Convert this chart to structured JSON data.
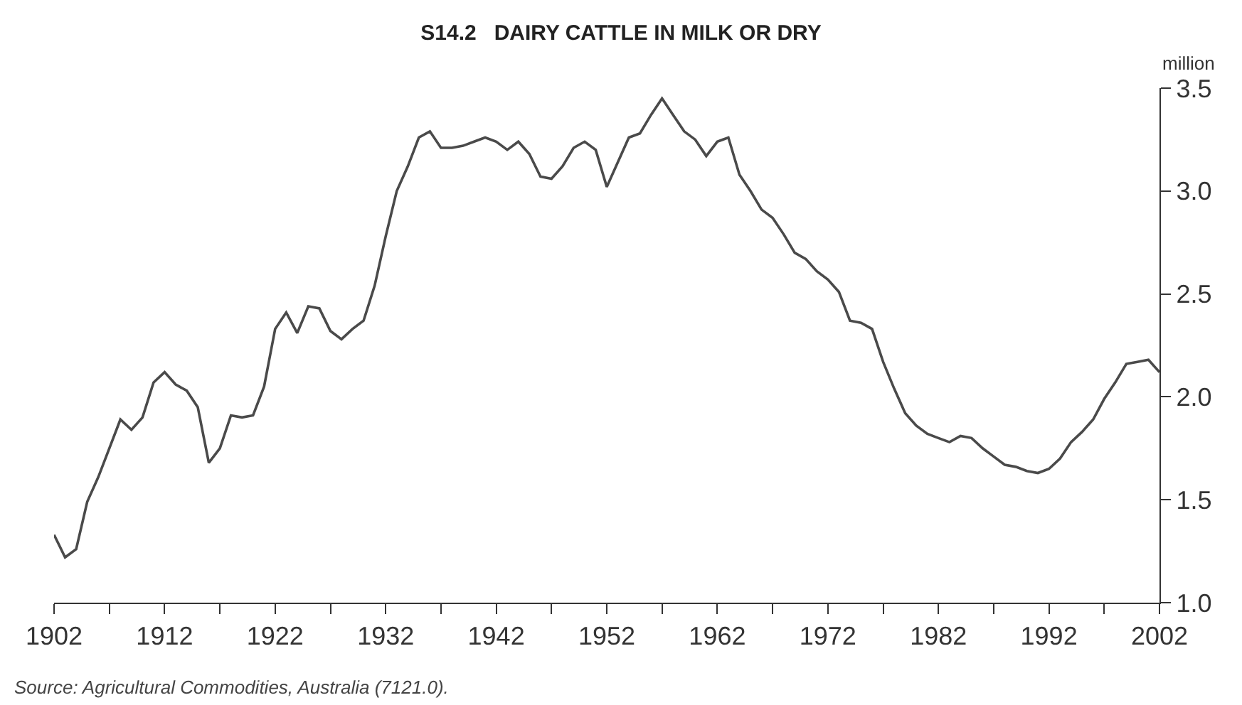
{
  "chart_data": {
    "type": "line",
    "title": "S14.2   DAIRY CATTLE IN MILK OR DRY",
    "ylabel": "million",
    "annotations": [
      "Source: Agricultural Commodities, Australia (7121.0)."
    ],
    "x": [
      1902,
      1903,
      1904,
      1905,
      1906,
      1907,
      1908,
      1909,
      1910,
      1911,
      1912,
      1913,
      1914,
      1915,
      1916,
      1917,
      1918,
      1919,
      1920,
      1921,
      1922,
      1923,
      1924,
      1925,
      1926,
      1927,
      1928,
      1929,
      1930,
      1931,
      1932,
      1933,
      1934,
      1935,
      1936,
      1937,
      1938,
      1939,
      1940,
      1941,
      1942,
      1943,
      1944,
      1945,
      1946,
      1947,
      1948,
      1949,
      1950,
      1951,
      1952,
      1953,
      1954,
      1955,
      1956,
      1957,
      1958,
      1959,
      1960,
      1961,
      1962,
      1963,
      1964,
      1965,
      1966,
      1967,
      1968,
      1969,
      1970,
      1971,
      1972,
      1973,
      1974,
      1975,
      1976,
      1977,
      1978,
      1979,
      1980,
      1981,
      1982,
      1983,
      1984,
      1985,
      1986,
      1987,
      1988,
      1989,
      1990,
      1991,
      1992,
      1993,
      1994,
      1995,
      1996,
      1997,
      1998,
      1999,
      2000,
      2001,
      2002
    ],
    "series": [
      {
        "color": "#4a4a4a",
        "values": [
          1.33,
          1.22,
          1.26,
          1.49,
          1.61,
          1.75,
          1.89,
          1.84,
          1.9,
          2.07,
          2.12,
          2.06,
          2.03,
          1.95,
          1.68,
          1.75,
          1.91,
          1.9,
          1.91,
          2.05,
          2.33,
          2.41,
          2.31,
          2.44,
          2.43,
          2.32,
          2.28,
          2.33,
          2.37,
          2.54,
          2.78,
          3.0,
          3.12,
          3.26,
          3.29,
          3.21,
          3.21,
          3.22,
          3.24,
          3.26,
          3.24,
          3.2,
          3.24,
          3.18,
          3.07,
          3.06,
          3.12,
          3.21,
          3.24,
          3.2,
          3.02,
          3.14,
          3.26,
          3.28,
          3.37,
          3.45,
          3.37,
          3.29,
          3.25,
          3.17,
          3.24,
          3.26,
          3.08,
          3.0,
          2.91,
          2.87,
          2.79,
          2.7,
          2.67,
          2.61,
          2.57,
          2.51,
          2.37,
          2.36,
          2.33,
          2.17,
          2.04,
          1.92,
          1.86,
          1.82,
          1.8,
          1.78,
          1.81,
          1.8,
          1.75,
          1.71,
          1.67,
          1.66,
          1.64,
          1.63,
          1.65,
          1.7,
          1.78,
          1.83,
          1.89,
          1.99,
          2.07,
          2.16,
          2.17,
          2.18,
          2.12
        ]
      }
    ],
    "xlim": [
      1902,
      2002
    ],
    "xticks": [
      1902,
      {
        "value": 1907,
        "label": null
      },
      1912,
      {
        "value": 1917,
        "label": null
      },
      1922,
      {
        "value": 1927,
        "label": null
      },
      1932,
      {
        "value": 1937,
        "label": null
      },
      1942,
      {
        "value": 1947,
        "label": null
      },
      1952,
      {
        "value": 1957,
        "label": null
      },
      1962,
      {
        "value": 1967,
        "label": null
      },
      1972,
      {
        "value": 1977,
        "label": null
      },
      1982,
      {
        "value": 1987,
        "label": null
      },
      1992,
      {
        "value": 1997,
        "label": null
      },
      2002
    ],
    "ylim": [
      1.0,
      3.5
    ],
    "yticks": [
      {
        "value": 1.0,
        "label": "1.0"
      },
      {
        "value": 1.5,
        "label": "1.5"
      },
      {
        "value": 2.0,
        "label": "2.0"
      },
      {
        "value": 2.5,
        "label": "2.5"
      },
      {
        "value": 3.0,
        "label": "3.0"
      },
      {
        "value": 3.5,
        "label": "3.5"
      }
    ],
    "legend": false,
    "marker": "none",
    "line_style": "solid"
  }
}
